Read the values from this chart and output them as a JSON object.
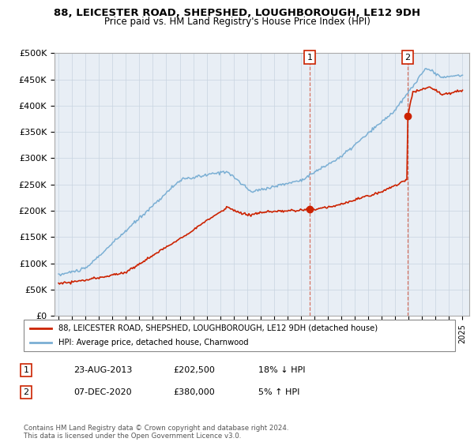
{
  "title": "88, LEICESTER ROAD, SHEPSHED, LOUGHBOROUGH, LE12 9DH",
  "subtitle": "Price paid vs. HM Land Registry's House Price Index (HPI)",
  "ylim": [
    0,
    500000
  ],
  "yticks": [
    0,
    50000,
    100000,
    150000,
    200000,
    250000,
    300000,
    350000,
    400000,
    450000,
    500000
  ],
  "ytick_labels": [
    "£0",
    "£50K",
    "£100K",
    "£150K",
    "£200K",
    "£250K",
    "£300K",
    "£350K",
    "£400K",
    "£450K",
    "£500K"
  ],
  "hpi_color": "#7bafd4",
  "price_color": "#cc2200",
  "sale1_date": 2013.65,
  "sale1_price": 202500,
  "sale2_date": 2020.93,
  "sale2_price": 380000,
  "legend_line1": "88, LEICESTER ROAD, SHEPSHED, LOUGHBOROUGH, LE12 9DH (detached house)",
  "legend_line2": "HPI: Average price, detached house, Charnwood",
  "table_row1": [
    "1",
    "23-AUG-2013",
    "£202,500",
    "18% ↓ HPI"
  ],
  "table_row2": [
    "2",
    "07-DEC-2020",
    "£380,000",
    "5% ↑ HPI"
  ],
  "footer": "Contains HM Land Registry data © Crown copyright and database right 2024.\nThis data is licensed under the Open Government Licence v3.0.",
  "plot_bg": "#e8eef5",
  "grid_color": "#c8d4e0"
}
